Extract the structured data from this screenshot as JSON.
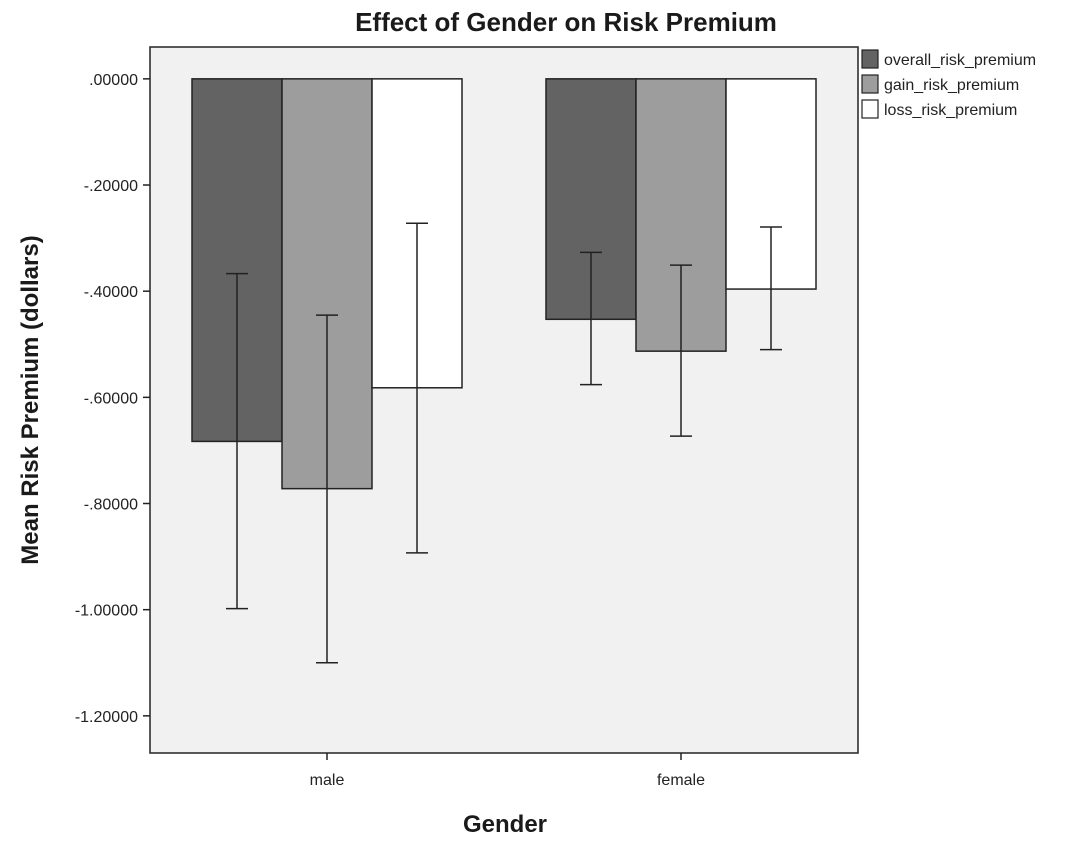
{
  "chart_data": {
    "type": "bar",
    "title": "Effect of Gender on Risk Premium",
    "xlabel": "Gender",
    "ylabel": "Mean Risk Premium (dollars)",
    "categories": [
      "male",
      "female"
    ],
    "ylim": [
      -1.27,
      0.06
    ],
    "yticks": [
      0.0,
      -0.2,
      -0.4,
      -0.6,
      -0.8,
      -1.0,
      -1.2
    ],
    "ytick_labels": [
      ".00000",
      "-.20000",
      "-.40000",
      "-.60000",
      "-.80000",
      "-1.00000",
      "-1.20000"
    ],
    "grid": false,
    "legend_position": "top-right, outside plot",
    "plot_background": "#f0f1f0",
    "series": [
      {
        "name": "overall_risk_premium",
        "color": "#636363",
        "values": [
          -0.683,
          -0.453
        ],
        "error_low": [
          -0.998,
          -0.576
        ],
        "error_high": [
          -0.367,
          -0.327
        ]
      },
      {
        "name": "gain_risk_premium",
        "color": "#9d9d9d",
        "values": [
          -0.772,
          -0.513
        ],
        "error_low": [
          -1.1,
          -0.673
        ],
        "error_high": [
          -0.445,
          -0.351
        ]
      },
      {
        "name": "loss_risk_premium",
        "color": "#ffffff",
        "values": [
          -0.582,
          -0.396
        ],
        "error_low": [
          -0.893,
          -0.51
        ],
        "error_high": [
          -0.272,
          -0.279
        ]
      }
    ]
  }
}
